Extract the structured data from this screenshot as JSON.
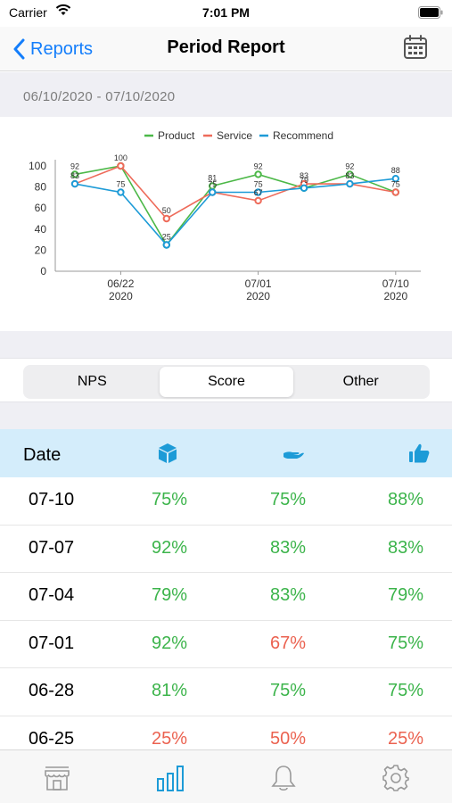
{
  "status_bar": {
    "carrier": "Carrier",
    "time": "7:01 PM"
  },
  "nav": {
    "back_label": "Reports",
    "title": "Period Report"
  },
  "date_range": "06/10/2020 - 07/10/2020",
  "colors": {
    "product": "#4cb848",
    "service": "#ee6b5a",
    "recommend": "#1d9bd7",
    "good": "#3cb44b",
    "bad": "#eb6250",
    "accent": "#147efb"
  },
  "chart_data": {
    "type": "line",
    "legend": [
      "Product",
      "Service",
      "Recommend"
    ],
    "legend_position": "top-center",
    "x": [
      "06/19",
      "06/22",
      "06/25",
      "06/28",
      "07/01",
      "07/04",
      "07/07",
      "07/10"
    ],
    "x_tick_labels": [
      {
        "at": "06/22",
        "line1": "06/22",
        "line2": "2020"
      },
      {
        "at": "07/01",
        "line1": "07/01",
        "line2": "2020"
      },
      {
        "at": "07/10",
        "line1": "07/10",
        "line2": "2020"
      }
    ],
    "y_ticks": [
      0,
      20,
      40,
      60,
      80,
      100
    ],
    "ylim": [
      0,
      100
    ],
    "series": [
      {
        "name": "Product",
        "values": [
          92,
          100,
          25,
          81,
          92,
          79,
          92,
          75
        ]
      },
      {
        "name": "Service",
        "values": [
          83,
          100,
          50,
          75,
          67,
          83,
          83,
          75
        ]
      },
      {
        "name": "Recommend",
        "values": [
          83,
          75,
          25,
          75,
          75,
          79,
          83,
          88
        ]
      }
    ],
    "data_labels": [
      {
        "x": "06/19",
        "text": "92"
      },
      {
        "x": "06/19",
        "text": "83"
      },
      {
        "x": "06/22",
        "text": "100"
      },
      {
        "x": "06/22",
        "text": "75"
      },
      {
        "x": "06/25",
        "text": "50"
      },
      {
        "x": "06/25",
        "text": "25"
      },
      {
        "x": "06/28",
        "text": "81"
      },
      {
        "x": "06/28",
        "text": "75"
      },
      {
        "x": "07/01",
        "text": "92"
      },
      {
        "x": "07/01",
        "text": "75"
      },
      {
        "x": "07/01",
        "text": "67"
      },
      {
        "x": "07/04",
        "text": "83"
      },
      {
        "x": "07/04",
        "text": "79"
      },
      {
        "x": "07/07",
        "text": "92"
      },
      {
        "x": "07/07",
        "text": "83"
      },
      {
        "x": "07/10",
        "text": "88"
      },
      {
        "x": "07/10",
        "text": "75"
      }
    ],
    "grid": false
  },
  "segments": [
    {
      "label": "NPS",
      "active": false
    },
    {
      "label": "Score",
      "active": true
    },
    {
      "label": "Other",
      "active": false
    }
  ],
  "table": {
    "header": {
      "date": "Date",
      "icons": [
        "product-box-icon",
        "service-hand-icon",
        "recommend-thumbs-up-icon"
      ]
    },
    "rows": [
      {
        "date": "07-10",
        "values": [
          "75%",
          "75%",
          "88%"
        ],
        "status": [
          "good",
          "good",
          "good"
        ]
      },
      {
        "date": "07-07",
        "values": [
          "92%",
          "83%",
          "83%"
        ],
        "status": [
          "good",
          "good",
          "good"
        ]
      },
      {
        "date": "07-04",
        "values": [
          "79%",
          "83%",
          "79%"
        ],
        "status": [
          "good",
          "good",
          "good"
        ]
      },
      {
        "date": "07-01",
        "values": [
          "92%",
          "67%",
          "75%"
        ],
        "status": [
          "good",
          "bad",
          "good"
        ]
      },
      {
        "date": "06-28",
        "values": [
          "81%",
          "75%",
          "75%"
        ],
        "status": [
          "good",
          "good",
          "good"
        ]
      },
      {
        "date": "06-25",
        "values": [
          "25%",
          "50%",
          "25%"
        ],
        "status": [
          "bad",
          "bad",
          "bad"
        ]
      }
    ]
  },
  "tab_bar": [
    "store-icon",
    "bar-chart-icon",
    "bell-icon",
    "gear-icon"
  ],
  "active_tab": "bar-chart-icon"
}
